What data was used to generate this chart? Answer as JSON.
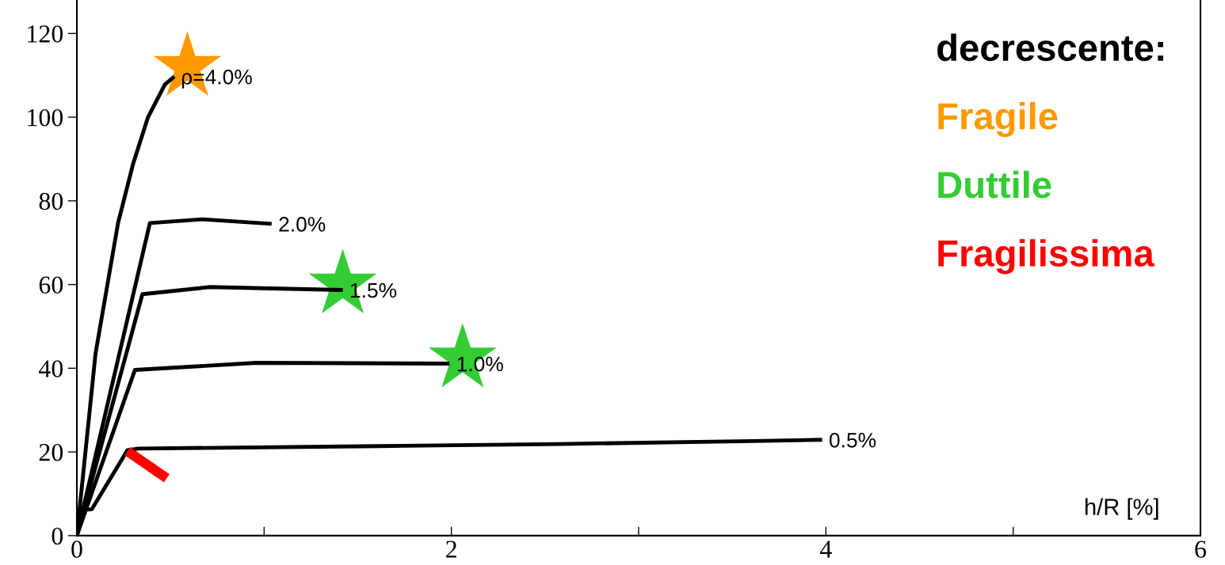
{
  "chart_data": {
    "type": "line",
    "xlabel": "h/R [%]",
    "legend_title": "decrescente:",
    "legend": "top right",
    "grid": false,
    "marker": "none",
    "line_style": "solid",
    "xlim": [
      0,
      6
    ],
    "ylim": [
      0,
      128
    ],
    "xticks": [
      0,
      {
        "value": 1,
        "label": null
      },
      2,
      {
        "value": 3,
        "label": null
      },
      4,
      {
        "value": 5,
        "label": null
      },
      6
    ],
    "yticks": [
      0,
      20,
      40,
      60,
      80,
      100,
      120
    ],
    "series": [
      {
        "name": "ρ=4.0%",
        "color": "#000000",
        "x": [
          0,
          0.1,
          0.22,
          0.3,
          0.38,
          0.47,
          0.52
        ],
        "values": [
          0,
          43.6,
          74.7,
          88.8,
          100,
          107.8,
          109.7
        ]
      },
      {
        "name": "2.0%",
        "color": "#000000",
        "x": [
          0,
          0.39,
          0.67,
          1.04
        ],
        "values": [
          0,
          74.7,
          75.6,
          74.5
        ]
      },
      {
        "name": "1.5%",
        "color": "#000000",
        "x": [
          0,
          0.35,
          0.71,
          1.42
        ],
        "values": [
          0,
          57.7,
          59.4,
          58.7
        ]
      },
      {
        "name": "1.0%",
        "color": "#000000",
        "x": [
          0,
          0.31,
          0.96,
          1.99
        ],
        "values": [
          0,
          39.6,
          41.3,
          41.1
        ]
      },
      {
        "name": "0.5%",
        "color": "#000000",
        "x": [
          0,
          0.03,
          0.08,
          0.27,
          0.33,
          1.62,
          2.58,
          3.61,
          3.98
        ],
        "values": [
          0,
          6.2,
          6.3,
          20.4,
          20.8,
          21.4,
          21.9,
          22.6,
          22.9
        ]
      },
      {
        "name": "Fragile",
        "type": "scatter",
        "marker": "star",
        "color": "#ff9900",
        "x": [
          0.59
        ],
        "values": [
          112
        ]
      },
      {
        "name": "Duttile",
        "type": "scatter",
        "marker": "star",
        "color": "#33cc33",
        "x": [
          1.42,
          2.06
        ],
        "values": [
          60,
          42.3
        ]
      },
      {
        "name": "Fragilissima",
        "type": "line",
        "color": "#ff0000",
        "x": [
          0.27,
          0.48
        ],
        "values": [
          20.2,
          13.7
        ]
      }
    ]
  }
}
